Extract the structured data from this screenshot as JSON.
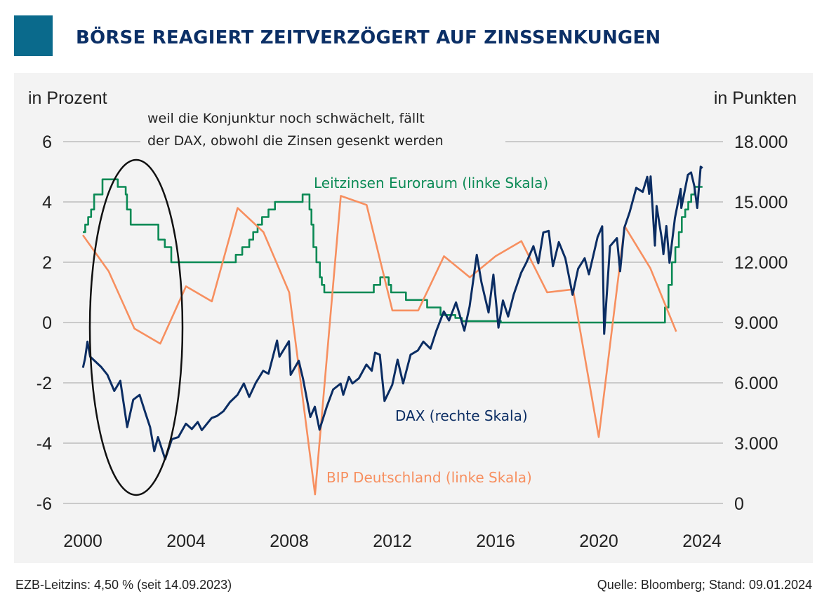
{
  "header": {
    "title": "BÖRSE REAGIERT ZEITVERZÖGERT AUF ZINSSENKUNGEN",
    "accent_color": "#0a6a8c"
  },
  "chart_data": {
    "type": "line",
    "title": "BÖRSE REAGIERT ZEITVERZÖGERT AUF ZINSSENKUNGEN",
    "ylabel_left": "in Prozent",
    "ylabel_right": "in Punkten",
    "ylim_left": [
      -6,
      6
    ],
    "ylim_right": [
      0,
      18000
    ],
    "xlim": [
      2000,
      2024
    ],
    "x_ticks": [
      "2000",
      "2004",
      "2008",
      "2012",
      "2016",
      "2020",
      "2024"
    ],
    "y_left_ticks": [
      "6",
      "4",
      "2",
      "0",
      "-2",
      "-4",
      "-6"
    ],
    "y_right_ticks": [
      "18.000",
      "15.000",
      "12.000",
      "9.000",
      "6.000",
      "3.000",
      "0"
    ],
    "grid": "horizontal",
    "annotation": {
      "lines": [
        "weil die Konjunktur noch schwächelt, fällt",
        "der DAX, obwohl die Zinsen gesenkt werden"
      ],
      "highlight": "ellipse around 2000–2003"
    },
    "series": [
      {
        "name": "Leitzinsen Euroraum (linke Skala)",
        "axis": "left",
        "style": "step",
        "color": "#0b8a55",
        "points": [
          [
            "2000-01-01",
            3.0
          ],
          [
            "2000-02-04",
            3.25
          ],
          [
            "2000-03-17",
            3.5
          ],
          [
            "2000-04-28",
            3.75
          ],
          [
            "2000-06-09",
            4.25
          ],
          [
            "2000-10-06",
            4.75
          ],
          [
            "2001-05-11",
            4.5
          ],
          [
            "2001-08-31",
            4.25
          ],
          [
            "2001-09-18",
            3.75
          ],
          [
            "2001-11-09",
            3.25
          ],
          [
            "2002-12-06",
            2.75
          ],
          [
            "2003-03-07",
            2.5
          ],
          [
            "2003-06-06",
            2.0
          ],
          [
            "2005-12-06",
            2.25
          ],
          [
            "2006-03-08",
            2.5
          ],
          [
            "2006-06-15",
            2.75
          ],
          [
            "2006-08-09",
            3.0
          ],
          [
            "2006-10-11",
            3.25
          ],
          [
            "2006-12-13",
            3.5
          ],
          [
            "2007-03-14",
            3.75
          ],
          [
            "2007-06-13",
            4.0
          ],
          [
            "2008-07-09",
            4.25
          ],
          [
            "2008-10-15",
            3.75
          ],
          [
            "2008-11-12",
            3.25
          ],
          [
            "2008-12-10",
            2.5
          ],
          [
            "2009-01-21",
            2.0
          ],
          [
            "2009-03-11",
            1.5
          ],
          [
            "2009-04-08",
            1.25
          ],
          [
            "2009-05-13",
            1.0
          ],
          [
            "2011-04-13",
            1.25
          ],
          [
            "2011-07-13",
            1.5
          ],
          [
            "2011-11-09",
            1.25
          ],
          [
            "2011-12-14",
            1.0
          ],
          [
            "2012-07-11",
            0.75
          ],
          [
            "2013-05-08",
            0.5
          ],
          [
            "2013-11-13",
            0.25
          ],
          [
            "2014-06-11",
            0.15
          ],
          [
            "2014-09-10",
            0.05
          ],
          [
            "2016-03-16",
            0.0
          ],
          [
            "2022-07-27",
            0.5
          ],
          [
            "2022-09-14",
            1.25
          ],
          [
            "2022-11-02",
            2.0
          ],
          [
            "2022-12-21",
            2.5
          ],
          [
            "2023-02-08",
            3.0
          ],
          [
            "2023-03-22",
            3.5
          ],
          [
            "2023-05-10",
            3.75
          ],
          [
            "2023-06-21",
            4.0
          ],
          [
            "2023-08-02",
            4.25
          ],
          [
            "2023-09-20",
            4.5
          ],
          [
            "2024-01-09",
            4.5
          ]
        ]
      },
      {
        "name": "BIP Deutschland (linke Skala)",
        "axis": "left",
        "style": "line",
        "color": "#f78f5f",
        "points": [
          [
            "2000",
            2.9
          ],
          [
            "2001",
            1.7
          ],
          [
            "2002",
            -0.2
          ],
          [
            "2003",
            -0.7
          ],
          [
            "2004",
            1.2
          ],
          [
            "2005",
            0.7
          ],
          [
            "2006",
            3.8
          ],
          [
            "2007",
            3.0
          ],
          [
            "2008",
            1.0
          ],
          [
            "2009",
            -5.7
          ],
          [
            "2010",
            4.2
          ],
          [
            "2011",
            3.9
          ],
          [
            "2012",
            0.4
          ],
          [
            "2013",
            0.4
          ],
          [
            "2014",
            2.2
          ],
          [
            "2015",
            1.5
          ],
          [
            "2016",
            2.2
          ],
          [
            "2017",
            2.7
          ],
          [
            "2018",
            1.0
          ],
          [
            "2019",
            1.1
          ],
          [
            "2020",
            -3.8
          ],
          [
            "2021",
            3.2
          ],
          [
            "2022",
            1.8
          ],
          [
            "2023",
            -0.3
          ]
        ]
      },
      {
        "name": "DAX (rechte Skala)",
        "axis": "right",
        "style": "line",
        "color": "#0b2d63",
        "points": [
          [
            "2000-01-03",
            6750
          ],
          [
            "2000-02-01",
            7200
          ],
          [
            "2000-03-07",
            8050
          ],
          [
            "2000-04-15",
            7300
          ],
          [
            "2000-06-15",
            7100
          ],
          [
            "2000-09-15",
            6800
          ],
          [
            "2000-12-15",
            6400
          ],
          [
            "2001-03-22",
            5600
          ],
          [
            "2001-06-15",
            6100
          ],
          [
            "2001-09-21",
            3800
          ],
          [
            "2001-12-15",
            5160
          ],
          [
            "2002-03-15",
            5400
          ],
          [
            "2002-06-15",
            4400
          ],
          [
            "2002-08-10",
            3800
          ],
          [
            "2002-10-09",
            2600
          ],
          [
            "2002-12-01",
            3300
          ],
          [
            "2003-03-12",
            2200
          ],
          [
            "2003-06-15",
            3200
          ],
          [
            "2003-09-15",
            3300
          ],
          [
            "2003-12-30",
            3965
          ],
          [
            "2004-03-24",
            3700
          ],
          [
            "2004-06-15",
            4050
          ],
          [
            "2004-08-12",
            3650
          ],
          [
            "2004-12-30",
            4250
          ],
          [
            "2005-03-15",
            4350
          ],
          [
            "2005-06-15",
            4590
          ],
          [
            "2005-09-15",
            5040
          ],
          [
            "2005-12-30",
            5400
          ],
          [
            "2006-03-30",
            5970
          ],
          [
            "2006-06-14",
            5300
          ],
          [
            "2006-09-15",
            6000
          ],
          [
            "2006-12-29",
            6600
          ],
          [
            "2007-03-14",
            6450
          ],
          [
            "2007-07-13",
            8100
          ],
          [
            "2007-08-16",
            7300
          ],
          [
            "2007-12-28",
            8070
          ],
          [
            "2008-01-22",
            6400
          ],
          [
            "2008-05-15",
            7100
          ],
          [
            "2008-07-15",
            6200
          ],
          [
            "2008-10-27",
            4300
          ],
          [
            "2008-12-30",
            4810
          ],
          [
            "2009-03-06",
            3670
          ],
          [
            "2009-06-15",
            4800
          ],
          [
            "2009-09-15",
            5670
          ],
          [
            "2009-12-30",
            5960
          ],
          [
            "2010-02-05",
            5400
          ],
          [
            "2010-04-26",
            6300
          ],
          [
            "2010-06-15",
            5970
          ],
          [
            "2010-09-15",
            6230
          ],
          [
            "2010-12-30",
            6910
          ],
          [
            "2011-03-15",
            6600
          ],
          [
            "2011-05-02",
            7500
          ],
          [
            "2011-07-07",
            7400
          ],
          [
            "2011-09-12",
            5100
          ],
          [
            "2011-12-30",
            5900
          ],
          [
            "2012-03-15",
            7150
          ],
          [
            "2012-06-01",
            5970
          ],
          [
            "2012-09-15",
            7400
          ],
          [
            "2012-12-28",
            7610
          ],
          [
            "2013-03-15",
            8050
          ],
          [
            "2013-06-24",
            7700
          ],
          [
            "2013-09-15",
            8590
          ],
          [
            "2013-12-30",
            9550
          ],
          [
            "2014-03-14",
            9100
          ],
          [
            "2014-06-20",
            10000
          ],
          [
            "2014-10-16",
            8600
          ],
          [
            "2014-12-30",
            9800
          ],
          [
            "2015-04-10",
            12370
          ],
          [
            "2015-06-15",
            11000
          ],
          [
            "2015-09-24",
            9500
          ],
          [
            "2015-12-01",
            11380
          ],
          [
            "2016-02-11",
            8750
          ],
          [
            "2016-04-15",
            10100
          ],
          [
            "2016-06-27",
            9300
          ],
          [
            "2016-09-15",
            10400
          ],
          [
            "2016-12-30",
            11480
          ],
          [
            "2017-03-15",
            12000
          ],
          [
            "2017-06-20",
            12800
          ],
          [
            "2017-08-29",
            11950
          ],
          [
            "2017-11-07",
            13480
          ],
          [
            "2018-01-23",
            13560
          ],
          [
            "2018-03-23",
            11800
          ],
          [
            "2018-06-15",
            13000
          ],
          [
            "2018-09-15",
            12200
          ],
          [
            "2018-12-27",
            10380
          ],
          [
            "2019-03-15",
            11680
          ],
          [
            "2019-06-15",
            12200
          ],
          [
            "2019-08-15",
            11400
          ],
          [
            "2019-12-15",
            13250
          ],
          [
            "2020-02-19",
            13790
          ],
          [
            "2020-03-18",
            8440
          ],
          [
            "2020-06-08",
            12800
          ],
          [
            "2020-09-15",
            13200
          ],
          [
            "2020-10-30",
            11550
          ],
          [
            "2020-12-30",
            13720
          ],
          [
            "2021-03-15",
            14500
          ],
          [
            "2021-06-15",
            15700
          ],
          [
            "2021-09-15",
            15500
          ],
          [
            "2021-11-18",
            16250
          ],
          [
            "2021-12-15",
            15400
          ],
          [
            "2022-01-05",
            16270
          ],
          [
            "2022-03-07",
            12830
          ],
          [
            "2022-03-30",
            14800
          ],
          [
            "2022-06-15",
            13100
          ],
          [
            "2022-07-05",
            12400
          ],
          [
            "2022-08-15",
            13800
          ],
          [
            "2022-09-29",
            11975
          ],
          [
            "2022-12-15",
            14200
          ],
          [
            "2023-03-06",
            15650
          ],
          [
            "2023-03-15",
            14700
          ],
          [
            "2023-06-16",
            16350
          ],
          [
            "2023-07-31",
            16470
          ],
          [
            "2023-09-15",
            15800
          ],
          [
            "2023-10-26",
            14700
          ],
          [
            "2023-12-14",
            16750
          ],
          [
            "2024-01-09",
            16690
          ]
        ]
      }
    ]
  },
  "footer": {
    "left": "EZB-Leitzins: 4,50 % (seit 14.09.2023)",
    "right": "Quelle: Bloomberg; Stand: 09.01.2024"
  }
}
